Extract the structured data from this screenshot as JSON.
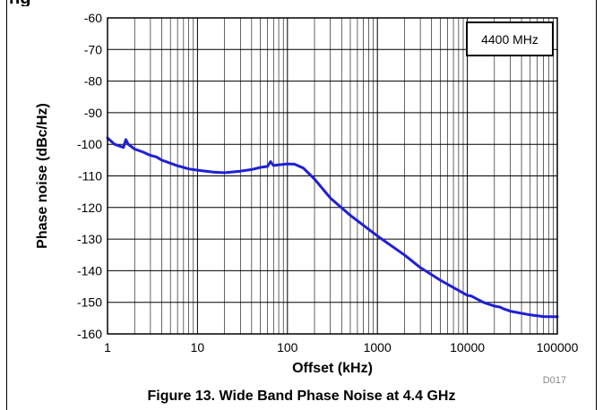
{
  "heading_fragment": "ng",
  "figure_caption": "Figure 13. Wide Band Phase Noise at 4.4 GHz",
  "figure_id": "D017",
  "chart_data": {
    "type": "line",
    "title": "",
    "xlabel": "Offset (kHz)",
    "ylabel": "Phase noise (dBc/Hz)",
    "x_scale": "log",
    "xlim": [
      1,
      100000
    ],
    "ylim": [
      -160,
      -60
    ],
    "x_ticks": [
      1,
      10,
      100,
      1000,
      10000,
      100000
    ],
    "x_tick_labels": [
      "1",
      "10",
      "100",
      "1000",
      "10000",
      "100000"
    ],
    "y_ticks": [
      -60,
      -70,
      -80,
      -90,
      -100,
      -110,
      -120,
      -130,
      -140,
      -150,
      -160
    ],
    "y_tick_labels": [
      "-60",
      "-70",
      "-80",
      "-90",
      "-100",
      "-110",
      "-120",
      "-130",
      "-140",
      "-150",
      "-160"
    ],
    "grid": true,
    "legend_position": "top-right",
    "legend": [
      "4400 MHz"
    ],
    "colors": {
      "line": "#1f1fd6",
      "grid": "#000000"
    },
    "series": [
      {
        "name": "4400 MHz",
        "x": [
          1,
          1.2,
          1.5,
          1.6,
          1.7,
          2,
          2.5,
          3,
          3.5,
          4,
          5,
          6,
          7,
          8,
          10,
          15,
          20,
          30,
          40,
          50,
          60,
          65,
          70,
          80,
          100,
          120,
          150,
          200,
          300,
          500,
          1000,
          2000,
          3000,
          5000,
          10000,
          11000,
          15000,
          20000,
          23000,
          25000,
          30000,
          50000,
          70000,
          100000
        ],
        "y": [
          -98,
          -100,
          -101,
          -98.5,
          -100,
          -101.5,
          -102.5,
          -103.5,
          -104,
          -105,
          -106,
          -106.8,
          -107.3,
          -107.8,
          -108.2,
          -108.8,
          -109,
          -108.5,
          -108,
          -107.3,
          -107,
          -105.5,
          -106.7,
          -106.5,
          -106.2,
          -106.3,
          -107.5,
          -111,
          -117,
          -122.5,
          -129,
          -135,
          -139,
          -143,
          -147.8,
          -148,
          -150,
          -151.2,
          -151.5,
          -152,
          -152.8,
          -154,
          -154.5,
          -154.6
        ]
      }
    ]
  }
}
